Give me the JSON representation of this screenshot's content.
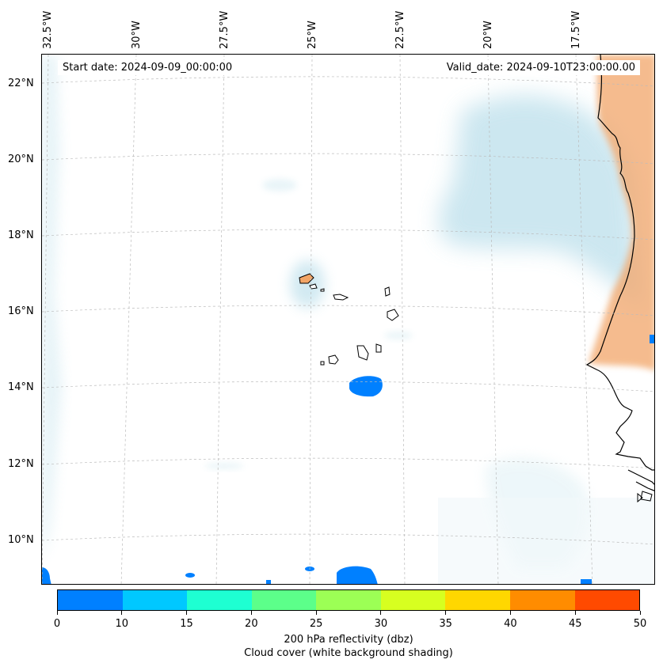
{
  "map": {
    "start_date": "Start date: 2024-09-09_00:00:00",
    "valid_date": "Valid_date: 2024-09-10T23:00:00.00",
    "lon_labels": [
      "32.5°W",
      "30°W",
      "27.5°W",
      "25°W",
      "22.5°W",
      "20°W",
      "17.5°W"
    ],
    "lat_labels": [
      "22°N",
      "20°N",
      "18°N",
      "16°N",
      "14°N",
      "12°N",
      "10°N"
    ]
  },
  "colorbar": {
    "ticks": [
      "0",
      "10",
      "15",
      "20",
      "25",
      "30",
      "35",
      "40",
      "45",
      "50"
    ],
    "colors": [
      "#0080ff",
      "#00c8ff",
      "#1effd2",
      "#5cff8a",
      "#9cff55",
      "#d7ff20",
      "#ffd700",
      "#ff8c00",
      "#ff4a00"
    ],
    "label_line1": "200 hPa reflectivity (dbz)",
    "label_line2": "Cloud cover (white background shading)"
  },
  "colors": {
    "cloud": "#aad7e6",
    "land_warm": "#f2a567",
    "reflectivity_low": "#0080ff"
  }
}
